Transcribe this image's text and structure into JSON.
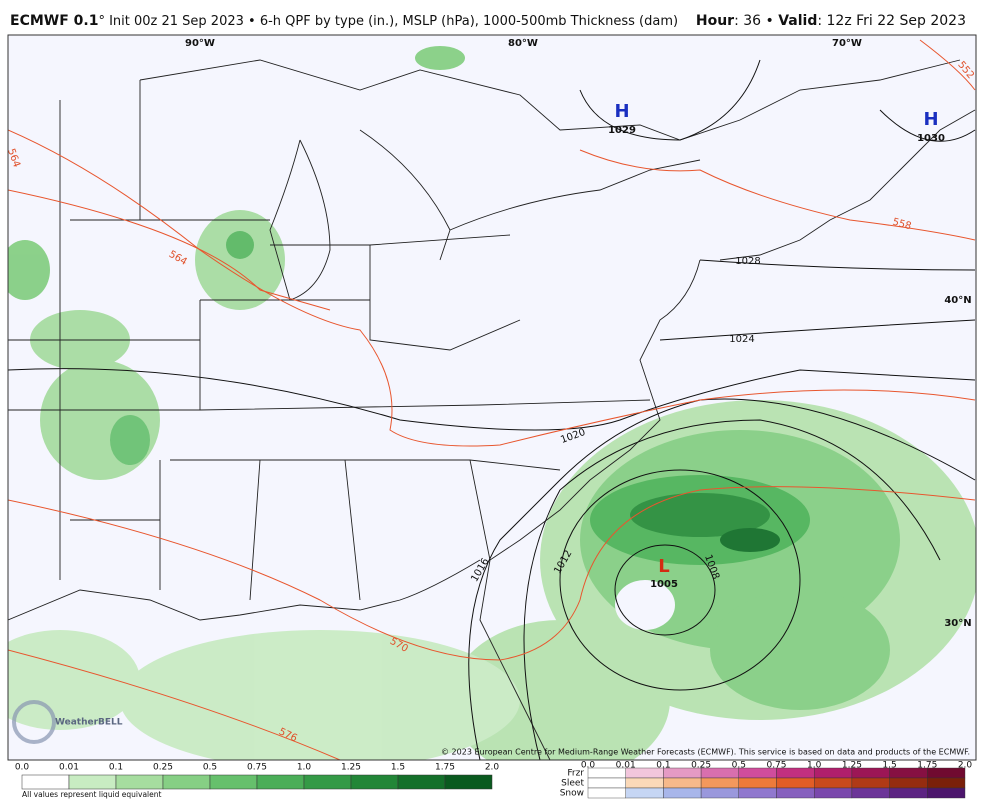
{
  "header": {
    "model": "ECMWF 0.1",
    "description": "° Init 00z 21 Sep 2023 • 6-h QPF by type (in.), MSLP (hPa), 1000-500mb Thickness (dam)",
    "hour_label": "Hour",
    "hour_value": ": 36 • ",
    "valid_label": "Valid",
    "valid_value": ": 12z Fri 22 Sep 2023"
  },
  "map": {
    "longitudes": [
      "90°W",
      "80°W",
      "70°W"
    ],
    "latitudes": [
      "40°N",
      "30°N"
    ],
    "highs": [
      {
        "symbol": "H",
        "pressure": "1029"
      },
      {
        "symbol": "H",
        "pressure": "1030"
      }
    ],
    "low": {
      "symbol": "L",
      "pressure": "1005"
    },
    "isobar_labels": [
      "1028",
      "1024",
      "1020",
      "1016",
      "1012",
      "1008"
    ],
    "thickness_labels": [
      "552",
      "558",
      "564",
      "564",
      "570",
      "576"
    ],
    "logo": "WeatherBELL",
    "copyright": "© 2023 European Centre for Medium-Range Weather Forecasts (ECMWF). This service is based on data and products of the ECMWF."
  },
  "colorbar": {
    "ticks": [
      "0.0",
      "0.01",
      "0.1",
      "0.25",
      "0.5",
      "0.75",
      "1.0",
      "1.25",
      "1.5",
      "1.75",
      "2.0"
    ],
    "note": "All values represent liquid equivalent"
  },
  "ptype": {
    "ticks": [
      "0.0",
      "0.01",
      "0.1",
      "0.25",
      "0.5",
      "0.75",
      "1.0",
      "1.25",
      "1.5",
      "1.75",
      "2.0"
    ],
    "rows": [
      "Frzr",
      "Sleet",
      "Snow"
    ]
  }
}
